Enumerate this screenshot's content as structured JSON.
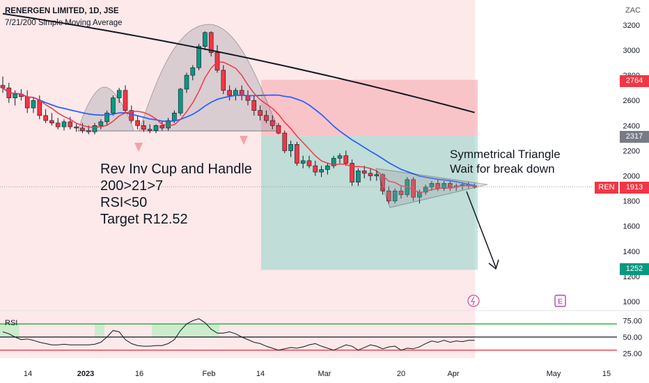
{
  "header": {
    "symbol": "RENERGEN LIMITED, 1D, JSE",
    "indicator": "7/21/200 Simple Moving Average"
  },
  "currency": "ZAC",
  "annotations": {
    "setup": [
      "Rev Inv Cup and Handle",
      "200>21>7",
      "RSI<50",
      "Target R12.52"
    ],
    "pattern": [
      "Symmetrical Triangle",
      "Wait for break down"
    ]
  },
  "price_levels": {
    "upper": "2764",
    "entry": "2317",
    "current_ticker": "REN",
    "current": "1913",
    "target": "1252"
  },
  "colors": {
    "up": "#089981",
    "down": "#f23645",
    "sma7": "#f23645",
    "sma21": "#2962ff",
    "sma200": "#131722",
    "rsi_line": "#131722",
    "rsi_overbought": "#22ab3c",
    "rsi_oversold": "#f23645",
    "stop_zone": "#f7b7bc",
    "target_zone": "#8fd3c8"
  },
  "chart_data": [
    {
      "type": "candlestick",
      "title": "RENERGEN LIMITED, 1D, JSE",
      "ylabel": "ZAC",
      "ylim": [
        950,
        3350
      ],
      "y_ticks": [
        1000,
        1200,
        1400,
        1600,
        1800,
        2000,
        2200,
        2400,
        2600,
        2800,
        3000,
        3200
      ],
      "x_ticks": [
        "14",
        "2023",
        "16",
        "Feb",
        "14",
        "Mar",
        "20",
        "Apr",
        "May",
        "15"
      ],
      "legend": [
        "7/21/200 Simple Moving Average"
      ],
      "candles": [
        [
          2720,
          2790,
          2660,
          2700
        ],
        [
          2700,
          2740,
          2580,
          2620
        ],
        [
          2620,
          2680,
          2560,
          2650
        ],
        [
          2650,
          2690,
          2600,
          2630
        ],
        [
          2630,
          2680,
          2500,
          2540
        ],
        [
          2540,
          2620,
          2500,
          2600
        ],
        [
          2600,
          2640,
          2450,
          2480
        ],
        [
          2480,
          2530,
          2420,
          2440
        ],
        [
          2440,
          2500,
          2400,
          2420
        ],
        [
          2420,
          2460,
          2370,
          2390
        ],
        [
          2390,
          2450,
          2360,
          2430
        ],
        [
          2430,
          2470,
          2370,
          2390
        ],
        [
          2390,
          2420,
          2350,
          2380
        ],
        [
          2380,
          2420,
          2340,
          2360
        ],
        [
          2360,
          2400,
          2330,
          2350
        ],
        [
          2350,
          2420,
          2330,
          2400
        ],
        [
          2400,
          2450,
          2370,
          2430
        ],
        [
          2430,
          2520,
          2400,
          2500
        ],
        [
          2500,
          2640,
          2480,
          2620
        ],
        [
          2620,
          2700,
          2580,
          2680
        ],
        [
          2680,
          2720,
          2500,
          2520
        ],
        [
          2520,
          2560,
          2420,
          2440
        ],
        [
          2440,
          2480,
          2370,
          2400
        ],
        [
          2400,
          2440,
          2350,
          2370
        ],
        [
          2370,
          2410,
          2340,
          2360
        ],
        [
          2360,
          2410,
          2340,
          2400
        ],
        [
          2400,
          2440,
          2360,
          2380
        ],
        [
          2380,
          2460,
          2360,
          2440
        ],
        [
          2440,
          2520,
          2420,
          2500
        ],
        [
          2500,
          2700,
          2480,
          2690
        ],
        [
          2690,
          2820,
          2660,
          2800
        ],
        [
          2800,
          2880,
          2760,
          2860
        ],
        [
          2860,
          3050,
          2840,
          3030
        ],
        [
          3030,
          3150,
          3000,
          3140
        ],
        [
          3140,
          3150,
          2950,
          2980
        ],
        [
          2980,
          3040,
          2820,
          2840
        ],
        [
          2840,
          2880,
          2650,
          2680
        ],
        [
          2680,
          2720,
          2600,
          2640
        ],
        [
          2640,
          2700,
          2600,
          2680
        ],
        [
          2680,
          2720,
          2600,
          2640
        ],
        [
          2640,
          2680,
          2560,
          2600
        ],
        [
          2600,
          2640,
          2480,
          2520
        ],
        [
          2520,
          2560,
          2440,
          2480
        ],
        [
          2480,
          2520,
          2420,
          2440
        ],
        [
          2440,
          2480,
          2370,
          2400
        ],
        [
          2400,
          2420,
          2330,
          2340
        ],
        [
          2340,
          2360,
          2180,
          2200
        ],
        [
          2200,
          2280,
          2150,
          2250
        ],
        [
          2250,
          2270,
          2080,
          2100
        ],
        [
          2100,
          2160,
          2060,
          2120
        ],
        [
          2120,
          2160,
          2060,
          2080
        ],
        [
          2080,
          2120,
          2000,
          2030
        ],
        [
          2030,
          2080,
          1990,
          2050
        ],
        [
          2050,
          2100,
          2010,
          2080
        ],
        [
          2080,
          2160,
          2060,
          2140
        ],
        [
          2140,
          2180,
          2100,
          2160
        ],
        [
          2160,
          2200,
          2080,
          2100
        ],
        [
          2100,
          2130,
          1920,
          1950
        ],
        [
          1950,
          2060,
          1920,
          2040
        ],
        [
          2040,
          2080,
          1980,
          2020
        ],
        [
          2020,
          2060,
          1960,
          2000
        ],
        [
          2000,
          2040,
          1960,
          2010
        ],
        [
          2010,
          2020,
          1850,
          1880
        ],
        [
          1880,
          1920,
          1780,
          1800
        ],
        [
          1800,
          1900,
          1780,
          1880
        ],
        [
          1880,
          1920,
          1820,
          1850
        ],
        [
          1850,
          1990,
          1830,
          1970
        ],
        [
          1970,
          1990,
          1800,
          1830
        ],
        [
          1830,
          1890,
          1780,
          1870
        ],
        [
          1870,
          1930,
          1850,
          1910
        ],
        [
          1910,
          1960,
          1880,
          1940
        ],
        [
          1940,
          1970,
          1880,
          1900
        ],
        [
          1900,
          1960,
          1880,
          1940
        ],
        [
          1940,
          1960,
          1880,
          1910
        ],
        [
          1910,
          1940,
          1880,
          1920
        ],
        [
          1920,
          1950,
          1890,
          1930
        ],
        [
          1930,
          1950,
          1900,
          1920
        ],
        [
          1920,
          1940,
          1900,
          1913
        ]
      ],
      "levels": {
        "stop": 2764,
        "entry": 2317,
        "target": 1252,
        "current": 1913
      }
    },
    {
      "type": "line",
      "title": "RSI",
      "ylim": [
        20,
        85
      ],
      "y_ticks": [
        25.0,
        50.0,
        75.0
      ],
      "overbought": 70,
      "midline": 50,
      "oversold": 30,
      "values": [
        58,
        55,
        50,
        46,
        47,
        45,
        42,
        40,
        38,
        38,
        39,
        38,
        38,
        38,
        38,
        39,
        42,
        50,
        60,
        58,
        46,
        40,
        37,
        36,
        36,
        37,
        37,
        40,
        46,
        60,
        70,
        75,
        78,
        72,
        62,
        56,
        56,
        58,
        55,
        50,
        46,
        42,
        40,
        36,
        33,
        30,
        32,
        34,
        33,
        35,
        38,
        40,
        36,
        33,
        30,
        34,
        38,
        36,
        30,
        34,
        38,
        36,
        32,
        35,
        36,
        30,
        33,
        32,
        35,
        40,
        44,
        42,
        45,
        42,
        44,
        43,
        45,
        45
      ]
    }
  ]
}
